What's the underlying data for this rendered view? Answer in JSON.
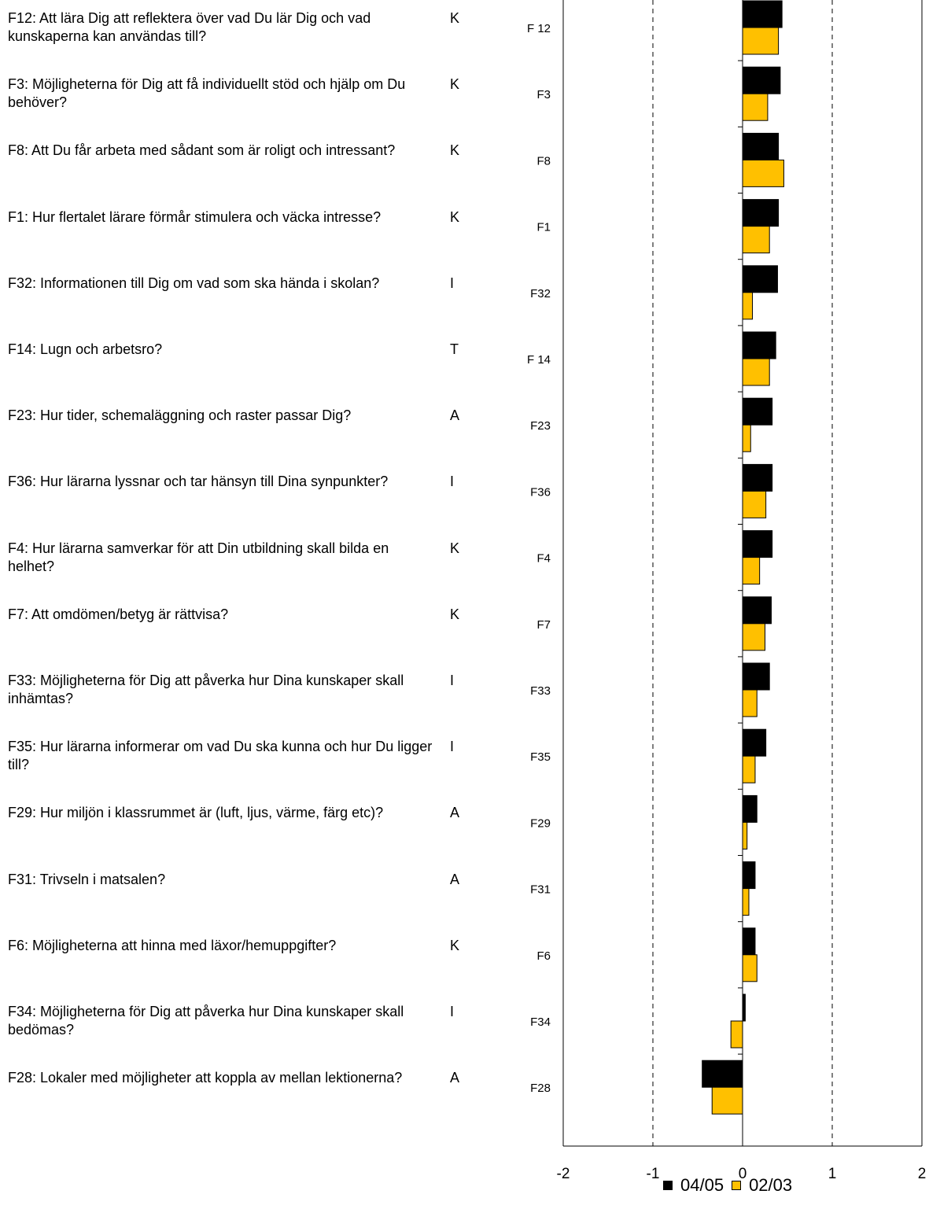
{
  "chart_data": {
    "type": "bar",
    "orientation": "horizontal",
    "xlim": [
      -2,
      2
    ],
    "xticks": [
      "-2",
      "-1",
      "0",
      "1",
      "2"
    ],
    "gridlines_at": [
      -1,
      1
    ],
    "legend_position": "bottom-right",
    "series": [
      {
        "name": "04/05",
        "color": "#000000"
      },
      {
        "name": "02/03",
        "color": "#FFC000"
      }
    ],
    "rows": [
      {
        "id": "F12",
        "axis_label": "F 12",
        "text": "F12: Att lära Dig att reflektera över vad Du lär Dig och vad kunskaperna kan användas till?",
        "code": "K",
        "v0405": 0.44,
        "v0203": 0.4
      },
      {
        "id": "F3",
        "axis_label": "F3",
        "text": "F3: Möjligheterna för Dig att få individuellt stöd och hjälp om Du behöver?",
        "code": "K",
        "v0405": 0.42,
        "v0203": 0.28
      },
      {
        "id": "F8",
        "axis_label": "F8",
        "text": "F8: Att Du får arbeta med sådant som är roligt och intressant?",
        "code": "K",
        "v0405": 0.4,
        "v0203": 0.46
      },
      {
        "id": "F1",
        "axis_label": "F1",
        "text": "F1: Hur flertalet lärare förmår stimulera och väcka intresse?",
        "code": "K",
        "v0405": 0.4,
        "v0203": 0.3
      },
      {
        "id": "F32",
        "axis_label": "F32",
        "text": "F32: Informationen till Dig om vad som ska hända i skolan?",
        "code": "I",
        "v0405": 0.39,
        "v0203": 0.11
      },
      {
        "id": "F14",
        "axis_label": "F 14",
        "text": "F14: Lugn och arbetsro?",
        "code": "T",
        "v0405": 0.37,
        "v0203": 0.3
      },
      {
        "id": "F23",
        "axis_label": "F23",
        "text": "F23: Hur tider, schemaläggning och raster passar Dig?",
        "code": "A",
        "v0405": 0.33,
        "v0203": 0.09
      },
      {
        "id": "F36",
        "axis_label": "F36",
        "text": "F36: Hur lärarna lyssnar och tar hänsyn till Dina synpunkter?",
        "code": "I",
        "v0405": 0.33,
        "v0203": 0.26
      },
      {
        "id": "F4",
        "axis_label": "F4",
        "text": "F4: Hur lärarna samverkar för att Din utbildning skall bilda en helhet?",
        "code": "K",
        "v0405": 0.33,
        "v0203": 0.19
      },
      {
        "id": "F7",
        "axis_label": "F7",
        "text": "F7: Att omdömen/betyg är rättvisa?",
        "code": "K",
        "v0405": 0.32,
        "v0203": 0.25
      },
      {
        "id": "F33",
        "axis_label": "F33",
        "text": "F33: Möjligheterna för Dig att påverka hur Dina kunskaper skall inhämtas?",
        "code": "I",
        "v0405": 0.3,
        "v0203": 0.16
      },
      {
        "id": "F35",
        "axis_label": "F35",
        "text": "F35: Hur lärarna informerar om vad Du ska kunna och hur Du ligger till?",
        "code": "I",
        "v0405": 0.26,
        "v0203": 0.14
      },
      {
        "id": "F29",
        "axis_label": "F29",
        "text": "F29: Hur miljön i klassrummet är (luft, ljus, värme, färg etc)?",
        "code": "A",
        "v0405": 0.16,
        "v0203": 0.05
      },
      {
        "id": "F31",
        "axis_label": "F31",
        "text": "F31: Trivseln i matsalen?",
        "code": "A",
        "v0405": 0.14,
        "v0203": 0.07
      },
      {
        "id": "F6",
        "axis_label": "F6",
        "text": "F6: Möjligheterna att hinna med läxor/hemuppgifter?",
        "code": "K",
        "v0405": 0.14,
        "v0203": 0.16
      },
      {
        "id": "F34",
        "axis_label": "F34",
        "text": "F34: Möjligheterna för Dig att påverka hur Dina kunskaper skall bedömas?",
        "code": "I",
        "v0405": 0.03,
        "v0203": -0.13
      },
      {
        "id": "F28",
        "axis_label": "F28",
        "text": "F28: Lokaler med möjligheter att koppla av mellan lektionerna?",
        "code": "A",
        "v0405": -0.45,
        "v0203": -0.34
      }
    ]
  }
}
